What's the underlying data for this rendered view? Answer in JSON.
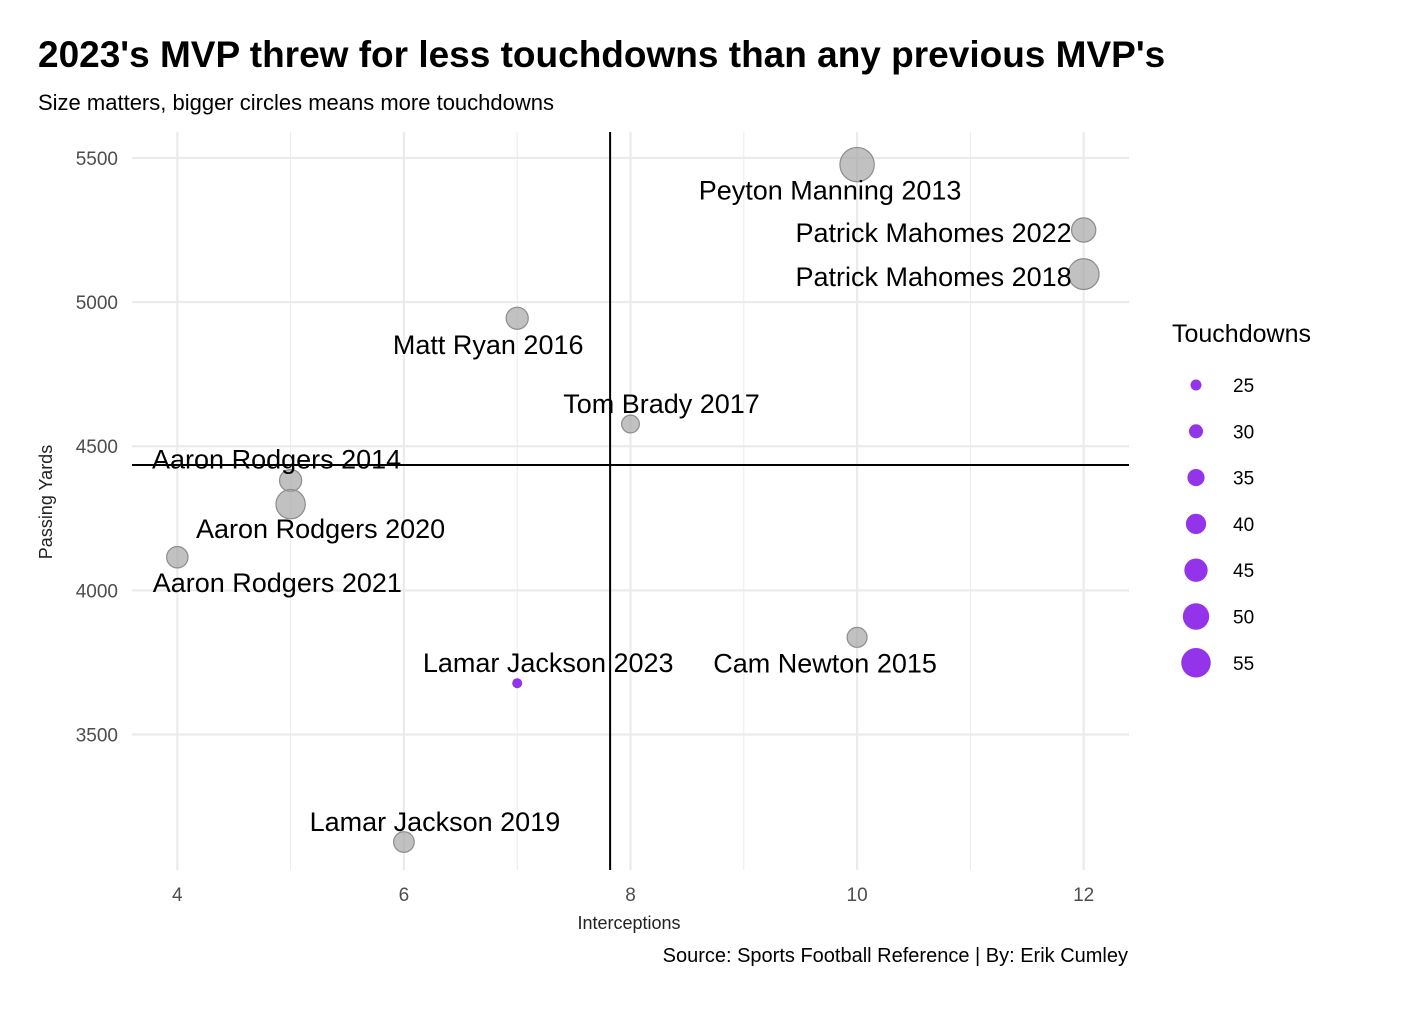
{
  "header": {
    "title": "2023's MVP threw for less touchdowns than any previous MVP's",
    "subtitle": "Size matters, bigger circles means more touchdowns"
  },
  "footer": {
    "caption": "Source: Sports Football Reference | By: Erik Cumley"
  },
  "colors": {
    "highlight": "#9333EA",
    "default_point": "#A6A6A6",
    "point_stroke": "#8C8C8C",
    "grid": "#EBEBEB",
    "reference_line": "#000000"
  },
  "chart_data": {
    "type": "scatter",
    "title": "2023's MVP threw for less touchdowns than any previous MVP's",
    "subtitle": "Size matters, bigger circles means more touchdowns",
    "xlabel": "Interceptions",
    "ylabel": "Passing Yards",
    "xlim": [
      3.6,
      12.4
    ],
    "ylim": [
      3030,
      5590
    ],
    "x_ticks": [
      4,
      6,
      8,
      10,
      12
    ],
    "y_ticks": [
      3500,
      4000,
      4500,
      5000,
      5500
    ],
    "grid": true,
    "size_variable": "Touchdowns",
    "reference_lines": {
      "vertical_x": 7.82,
      "horizontal_y": 4435
    },
    "points": [
      {
        "label": "Peyton Manning 2013",
        "x": 10,
        "y": 5477,
        "touchdowns": 55,
        "highlight": false
      },
      {
        "label": "Patrick Mahomes 2022",
        "x": 12,
        "y": 5250,
        "touchdowns": 41,
        "highlight": false
      },
      {
        "label": "Patrick Mahomes 2018",
        "x": 12,
        "y": 5097,
        "touchdowns": 50,
        "highlight": false
      },
      {
        "label": "Matt Ryan 2016",
        "x": 7,
        "y": 4944,
        "touchdowns": 38,
        "highlight": false
      },
      {
        "label": "Tom Brady 2017",
        "x": 8,
        "y": 4577,
        "touchdowns": 32,
        "highlight": false
      },
      {
        "label": "Aaron Rodgers 2014",
        "x": 5,
        "y": 4381,
        "touchdowns": 38,
        "highlight": false
      },
      {
        "label": "Aaron Rodgers 2020",
        "x": 5,
        "y": 4299,
        "touchdowns": 48,
        "highlight": false
      },
      {
        "label": "Aaron Rodgers 2021",
        "x": 4,
        "y": 4115,
        "touchdowns": 37,
        "highlight": false
      },
      {
        "label": "Cam Newton 2015",
        "x": 10,
        "y": 3837,
        "touchdowns": 35,
        "highlight": false
      },
      {
        "label": "Lamar Jackson 2023",
        "x": 7,
        "y": 3678,
        "touchdowns": 24,
        "highlight": true
      },
      {
        "label": "Lamar Jackson 2019",
        "x": 6,
        "y": 3127,
        "touchdowns": 36,
        "highlight": false
      }
    ],
    "legend": {
      "title": "Touchdowns",
      "position": "right",
      "values": [
        25,
        30,
        35,
        40,
        45,
        50,
        55
      ]
    }
  }
}
